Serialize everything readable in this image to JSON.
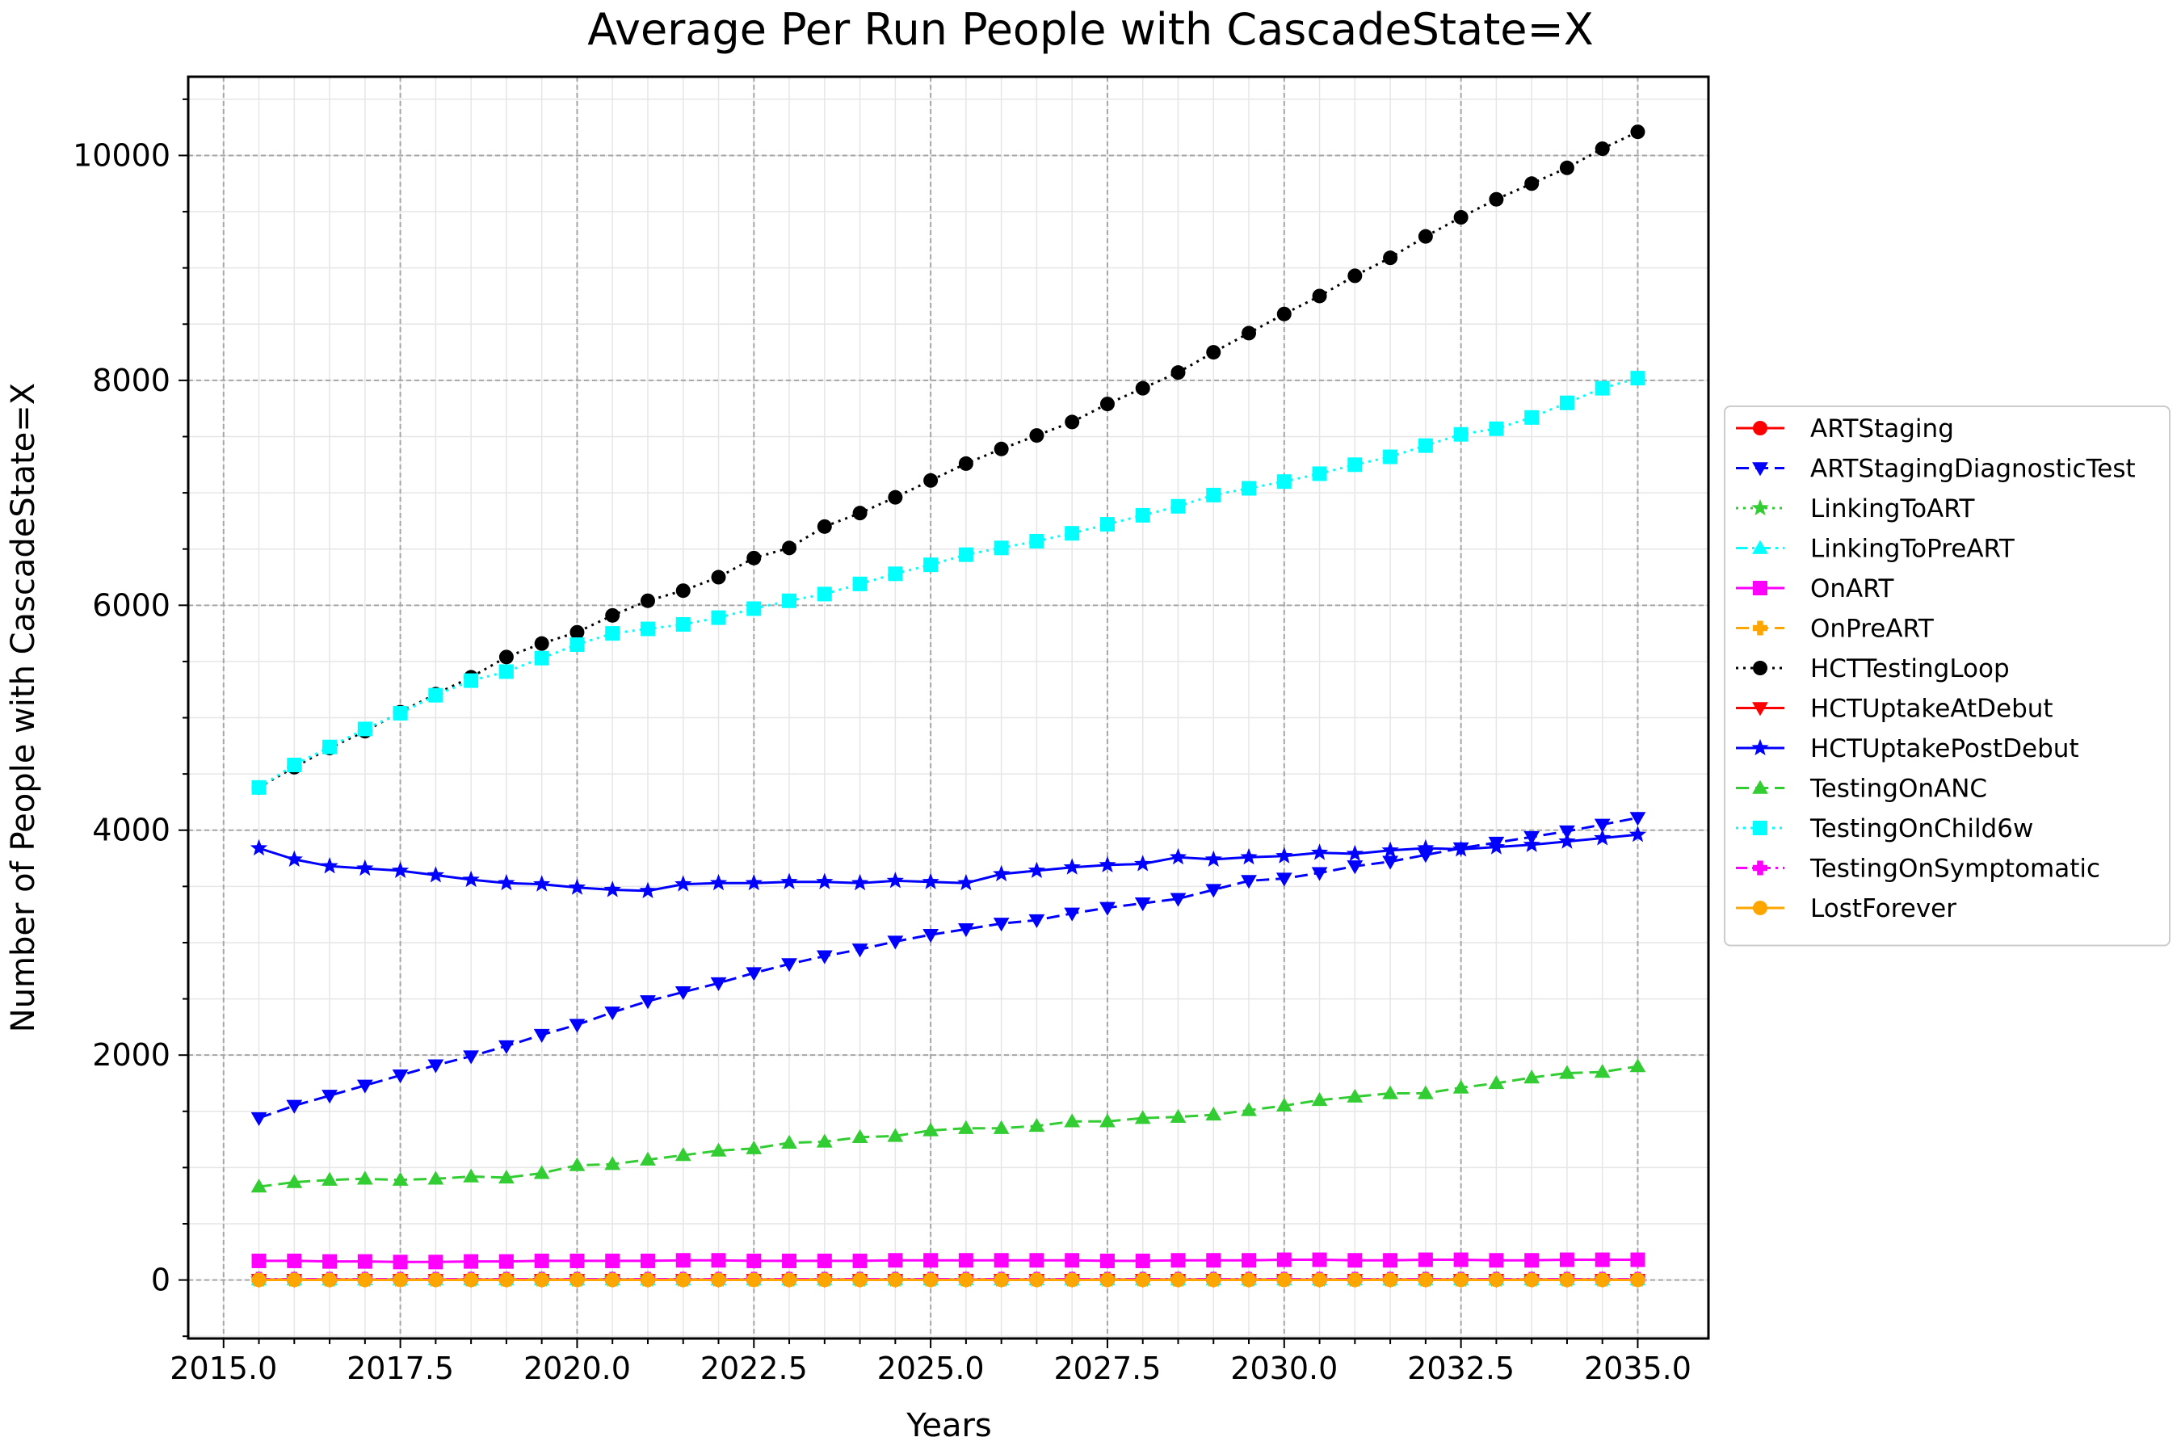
{
  "chart_data": {
    "type": "line",
    "title": "Average Per Run People with CascadeState=X",
    "xlabel": "Years",
    "ylabel": "Number of People with CascadeState=X",
    "xlim": [
      2014.5,
      2036.0
    ],
    "ylim": [
      -520,
      10700
    ],
    "x_ticks": [
      2015.0,
      2017.5,
      2020.0,
      2022.5,
      2025.0,
      2027.5,
      2030.0,
      2032.5,
      2035.0
    ],
    "x_tick_labels": [
      "2015.0",
      "2017.5",
      "2020.0",
      "2022.5",
      "2025.0",
      "2027.5",
      "2030.0",
      "2032.5",
      "2035.0"
    ],
    "y_ticks": [
      0,
      2000,
      4000,
      6000,
      8000,
      10000
    ],
    "y_tick_labels": [
      "0",
      "2000",
      "4000",
      "6000",
      "8000",
      "10000"
    ],
    "grid": true,
    "legend_position": "right-outside",
    "x": [
      2015.5,
      2016.0,
      2016.5,
      2017.0,
      2017.5,
      2018.0,
      2018.5,
      2019.0,
      2019.5,
      2020.0,
      2020.5,
      2021.0,
      2021.5,
      2022.0,
      2022.5,
      2023.0,
      2023.5,
      2024.0,
      2024.5,
      2025.0,
      2025.5,
      2026.0,
      2026.5,
      2027.0,
      2027.5,
      2028.0,
      2028.5,
      2029.0,
      2029.5,
      2030.0,
      2030.5,
      2031.0,
      2031.5,
      2032.0,
      2032.5,
      2033.0,
      2033.5,
      2034.0,
      2034.5,
      2035.0
    ],
    "series": [
      {
        "name": "ARTStaging",
        "color": "#ff0000",
        "marker": "circle",
        "dash": "solid",
        "values": [
          3,
          3,
          3,
          3,
          3,
          3,
          3,
          3,
          3,
          3,
          3,
          3,
          3,
          3,
          3,
          3,
          3,
          3,
          3,
          3,
          3,
          3,
          3,
          3,
          3,
          3,
          3,
          3,
          3,
          3,
          3,
          3,
          3,
          3,
          3,
          3,
          3,
          3,
          3,
          3
        ]
      },
      {
        "name": "ARTStagingDiagnosticTest",
        "color": "#0000ff",
        "marker": "triangle-down",
        "dash": "dashed",
        "values": [
          1440,
          1550,
          1640,
          1730,
          1820,
          1910,
          1990,
          2080,
          2180,
          2270,
          2380,
          2480,
          2560,
          2640,
          2730,
          2810,
          2880,
          2940,
          3010,
          3070,
          3120,
          3170,
          3200,
          3260,
          3310,
          3350,
          3390,
          3470,
          3550,
          3570,
          3620,
          3680,
          3720,
          3780,
          3840,
          3890,
          3940,
          3990,
          4050,
          4110
        ]
      },
      {
        "name": "LinkingToART",
        "color": "#32cd32",
        "marker": "star",
        "dash": "dotted",
        "values": [
          5,
          5,
          5,
          5,
          5,
          5,
          5,
          5,
          5,
          5,
          5,
          5,
          5,
          5,
          5,
          5,
          5,
          5,
          5,
          5,
          5,
          5,
          5,
          5,
          5,
          5,
          5,
          5,
          5,
          5,
          5,
          5,
          5,
          5,
          5,
          5,
          5,
          5,
          5,
          5
        ]
      },
      {
        "name": "LinkingToPreART",
        "color": "#00ffff",
        "marker": "triangle-up",
        "dash": "dashdot",
        "values": [
          4,
          4,
          4,
          4,
          4,
          4,
          4,
          4,
          4,
          4,
          4,
          4,
          4,
          4,
          4,
          4,
          4,
          4,
          4,
          4,
          4,
          4,
          4,
          4,
          4,
          4,
          4,
          4,
          4,
          4,
          4,
          4,
          4,
          4,
          4,
          4,
          4,
          4,
          4,
          4
        ]
      },
      {
        "name": "OnART",
        "color": "#ff00ff",
        "marker": "square",
        "dash": "solid",
        "values": [
          170,
          170,
          165,
          165,
          160,
          160,
          165,
          165,
          170,
          170,
          170,
          170,
          175,
          175,
          170,
          170,
          170,
          170,
          175,
          175,
          175,
          175,
          175,
          175,
          170,
          170,
          175,
          175,
          175,
          180,
          180,
          175,
          175,
          180,
          180,
          175,
          175,
          180,
          180,
          180
        ]
      },
      {
        "name": "OnPreART",
        "color": "#ffa500",
        "marker": "plus",
        "dash": "dashed",
        "values": [
          5,
          5,
          5,
          5,
          5,
          5,
          5,
          5,
          5,
          5,
          5,
          5,
          5,
          5,
          5,
          5,
          5,
          5,
          5,
          5,
          5,
          5,
          5,
          5,
          5,
          5,
          5,
          5,
          5,
          5,
          5,
          5,
          5,
          5,
          5,
          5,
          5,
          5,
          5,
          5
        ]
      },
      {
        "name": "HCTTestingLoop",
        "color": "#000000",
        "marker": "circle",
        "dash": "dotted",
        "values": [
          4380,
          4560,
          4730,
          4880,
          5050,
          5210,
          5360,
          5540,
          5660,
          5760,
          5910,
          6040,
          6130,
          6250,
          6420,
          6510,
          6700,
          6820,
          6960,
          7110,
          7260,
          7390,
          7510,
          7630,
          7790,
          7930,
          8070,
          8250,
          8420,
          8590,
          8750,
          8930,
          9090,
          9280,
          9450,
          9610,
          9750,
          9890,
          10060,
          10210
        ]
      },
      {
        "name": "HCTUptakeAtDebut",
        "color": "#ff0000",
        "marker": "triangle-down",
        "dash": "solid",
        "values": [
          2,
          2,
          2,
          2,
          2,
          2,
          2,
          2,
          2,
          2,
          2,
          2,
          2,
          2,
          2,
          2,
          2,
          2,
          2,
          2,
          2,
          2,
          2,
          2,
          2,
          2,
          2,
          2,
          2,
          2,
          2,
          2,
          2,
          2,
          2,
          2,
          2,
          2,
          2,
          2
        ]
      },
      {
        "name": "HCTUptakePostDebut",
        "color": "#0000ff",
        "marker": "star",
        "dash": "solid",
        "values": [
          3840,
          3740,
          3680,
          3660,
          3640,
          3600,
          3560,
          3530,
          3520,
          3490,
          3470,
          3460,
          3520,
          3530,
          3530,
          3540,
          3540,
          3530,
          3550,
          3540,
          3530,
          3610,
          3640,
          3670,
          3690,
          3700,
          3760,
          3740,
          3760,
          3770,
          3800,
          3790,
          3820,
          3840,
          3830,
          3850,
          3870,
          3900,
          3930,
          3960
        ]
      },
      {
        "name": "TestingOnANC",
        "color": "#32cd32",
        "marker": "triangle-up",
        "dash": "dashed",
        "values": [
          830,
          870,
          890,
          900,
          890,
          900,
          920,
          910,
          950,
          1020,
          1030,
          1070,
          1110,
          1150,
          1170,
          1220,
          1230,
          1270,
          1280,
          1330,
          1350,
          1350,
          1370,
          1410,
          1410,
          1440,
          1450,
          1470,
          1510,
          1550,
          1600,
          1630,
          1660,
          1660,
          1710,
          1750,
          1800,
          1840,
          1850,
          1900
        ]
      },
      {
        "name": "TestingOnChild6w",
        "color": "#00ffff",
        "marker": "square",
        "dash": "dotted",
        "values": [
          4380,
          4580,
          4740,
          4900,
          5040,
          5200,
          5330,
          5410,
          5530,
          5650,
          5750,
          5790,
          5830,
          5890,
          5970,
          6040,
          6100,
          6190,
          6280,
          6360,
          6450,
          6510,
          6570,
          6640,
          6720,
          6800,
          6880,
          6980,
          7040,
          7100,
          7170,
          7250,
          7320,
          7420,
          7520,
          7570,
          7670,
          7800,
          7930,
          8020
        ]
      },
      {
        "name": "TestingOnSymptomatic",
        "color": "#ff00ff",
        "marker": "plus",
        "dash": "dashdot",
        "values": [
          8,
          8,
          8,
          8,
          8,
          8,
          8,
          8,
          8,
          8,
          8,
          8,
          8,
          8,
          8,
          8,
          8,
          8,
          8,
          8,
          8,
          8,
          8,
          8,
          8,
          8,
          8,
          8,
          8,
          8,
          8,
          8,
          8,
          8,
          8,
          8,
          8,
          8,
          8,
          8
        ]
      },
      {
        "name": "LostForever",
        "color": "#ffa500",
        "marker": "circle",
        "dash": "solid",
        "values": [
          1,
          1,
          1,
          1,
          1,
          1,
          1,
          1,
          1,
          1,
          1,
          1,
          1,
          1,
          1,
          1,
          1,
          1,
          1,
          1,
          1,
          1,
          1,
          1,
          1,
          1,
          1,
          1,
          1,
          1,
          1,
          1,
          1,
          1,
          1,
          1,
          1,
          1,
          1,
          1
        ]
      }
    ]
  }
}
